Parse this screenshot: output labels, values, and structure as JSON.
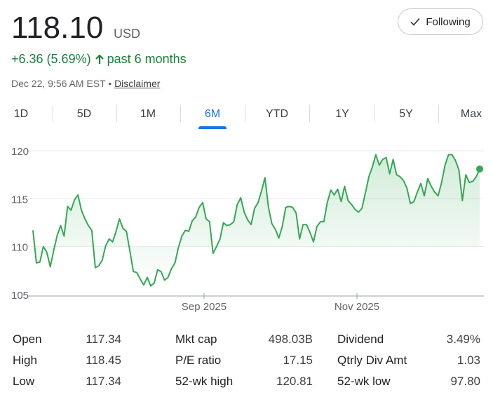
{
  "quote": {
    "price": "118.10",
    "currency": "USD",
    "change": "+6.36 (5.69%)",
    "period": "past 6 months",
    "timestamp": "Dec 22, 9:56 AM EST",
    "dot": "•",
    "disclaimer": "Disclaimer",
    "follow_label": "Following"
  },
  "tabs": [
    "1D",
    "5D",
    "1M",
    "6M",
    "YTD",
    "1Y",
    "5Y",
    "Max"
  ],
  "active_tab": "6M",
  "colors": {
    "up": "#188038",
    "line": "#34a853",
    "accent": "#1a73e8"
  },
  "chart_data": {
    "type": "area",
    "y_ticks": [
      "120",
      "115",
      "110",
      "105"
    ],
    "x_ticks": [
      "Sep 2025",
      "Nov 2025"
    ],
    "ylim": [
      105,
      120
    ],
    "grid": true,
    "values": [
      111.7,
      108.3,
      108.4,
      110.0,
      109.4,
      107.9,
      109.6,
      111.2,
      112.2,
      111.1,
      114.2,
      113.8,
      114.9,
      115.4,
      113.8,
      112.9,
      112.2,
      111.7,
      107.8,
      108.0,
      108.6,
      110.1,
      110.8,
      110.5,
      111.6,
      112.9,
      111.9,
      111.6,
      109.5,
      107.4,
      107.3,
      106.6,
      106.0,
      106.8,
      105.9,
      106.2,
      107.6,
      107.4,
      106.5,
      106.8,
      107.7,
      108.3,
      109.9,
      111.1,
      111.7,
      111.6,
      112.7,
      113.1,
      114.1,
      114.6,
      112.9,
      112.6,
      109.3,
      110.0,
      110.8,
      112.5,
      112.2,
      112.3,
      112.6,
      114.4,
      115.1,
      113.6,
      112.8,
      112.3,
      114.0,
      114.6,
      115.8,
      117.2,
      114.1,
      112.4,
      111.8,
      110.9,
      112.1,
      114.1,
      114.2,
      114.1,
      113.5,
      110.8,
      112.3,
      112.3,
      111.5,
      110.5,
      112.1,
      112.6,
      112.6,
      114.6,
      115.9,
      115.4,
      116.0,
      114.7,
      116.3,
      114.8,
      114.4,
      113.9,
      113.6,
      114.0,
      115.6,
      117.3,
      118.3,
      119.6,
      118.5,
      119.1,
      119.3,
      117.6,
      119.1,
      117.5,
      117.3,
      116.9,
      116.1,
      114.5,
      114.7,
      115.7,
      116.6,
      115.3,
      117.1,
      116.3,
      115.7,
      115.3,
      116.7,
      118.5,
      119.6,
      119.6,
      119.0,
      118.0,
      114.8,
      117.5,
      116.7,
      116.8,
      117.3,
      118.1
    ]
  },
  "stats": [
    [
      {
        "label": "Open",
        "value": "117.34"
      },
      {
        "label": "Mkt cap",
        "value": "498.03B"
      },
      {
        "label": "Dividend",
        "value": "3.49%"
      }
    ],
    [
      {
        "label": "High",
        "value": "118.45"
      },
      {
        "label": "P/E ratio",
        "value": "17.15"
      },
      {
        "label": "Qtrly Div Amt",
        "value": "1.03"
      }
    ],
    [
      {
        "label": "Low",
        "value": "117.34"
      },
      {
        "label": "52-wk high",
        "value": "120.81"
      },
      {
        "label": "52-wk low",
        "value": "97.80"
      }
    ]
  ]
}
